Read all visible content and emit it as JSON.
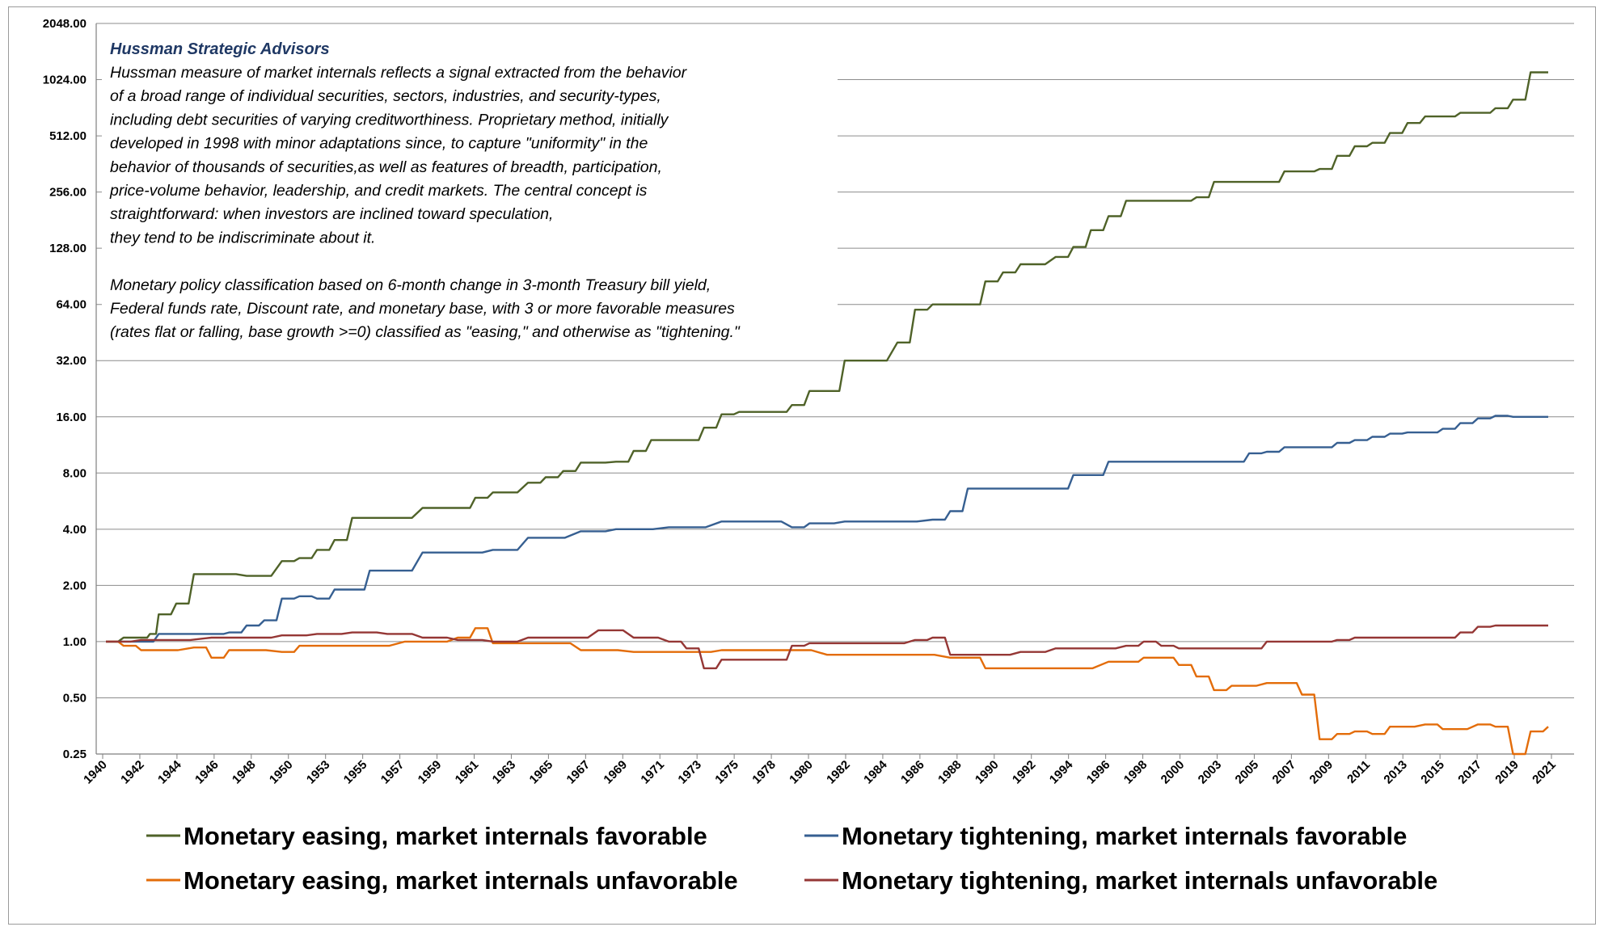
{
  "chart_data": {
    "type": "line",
    "y_scale": "log2",
    "ylim": [
      0.25,
      2048
    ],
    "xlim": [
      1940,
      2022
    ],
    "y_ticks": [
      "0.25",
      "0.50",
      "1.00",
      "2.00",
      "4.00",
      "8.00",
      "16.00",
      "32.00",
      "64.00",
      "128.00",
      "256.00",
      "512.00",
      "1024.00",
      "2048.00"
    ],
    "x_ticks": [
      "1940",
      "1942",
      "1944",
      "1946",
      "1948",
      "1950",
      "1953",
      "1955",
      "1957",
      "1959",
      "1961",
      "1963",
      "1965",
      "1967",
      "1969",
      "1971",
      "1973",
      "1975",
      "1978",
      "1980",
      "1982",
      "1984",
      "1986",
      "1988",
      "1990",
      "1992",
      "1994",
      "1996",
      "1998",
      "2000",
      "2003",
      "2005",
      "2007",
      "2009",
      "2011",
      "2013",
      "2015",
      "2017",
      "2019",
      "2021"
    ],
    "grid": "horizontal",
    "legend_position": "bottom",
    "annotation": {
      "title": "Hussman Strategic Advisors",
      "lines": [
        "Hussman measure of market internals reflects a signal extracted from the behavior",
        "of a broad range of individual securities, sectors, industries, and security-types,",
        "including debt securities of varying creditworthiness.  Proprietary method, initially",
        "developed in 1998 with minor adaptations since, to capture \"uniformity\" in the",
        "behavior of thousands of securities,as well as features of breadth, participation,",
        "price-volume behavior, leadership, and credit markets. The central concept is",
        "straightforward:  when investors are inclined toward speculation,",
        "they tend to be indiscriminate about it.",
        "",
        "Monetary policy classification based on 6-month change in 3-month Treasury bill yield,",
        "Federal funds rate, Discount rate, and monetary base, with 3 or more favorable measures",
        "(rates flat or falling, base growth >=0) classified as \"easing,\" and otherwise as \"tightening.\""
      ]
    },
    "series": [
      {
        "name": "Monetary easing, market internals favorable",
        "color": "#4f6228",
        "x": [
          1940,
          1941,
          1942,
          1942.5,
          1943,
          1944,
          1945,
          1946,
          1948,
          1950,
          1951,
          1952,
          1953,
          1954,
          1955,
          1956,
          1958,
          1960,
          1961,
          1962,
          1964,
          1965,
          1966,
          1967,
          1969,
          1970,
          1971,
          1973,
          1974,
          1975,
          1976,
          1978,
          1979,
          1980,
          1981,
          1982,
          1983,
          1985,
          1986,
          1987,
          1989,
          1990,
          1991,
          1992,
          1994,
          1995,
          1996,
          1997,
          1998,
          1999,
          2001,
          2002,
          2003,
          2005,
          2006,
          2007,
          2008,
          2009,
          2010,
          2011,
          2012,
          2013,
          2014,
          2015,
          2016,
          2017,
          2018,
          2019,
          2020,
          2021,
          2022
        ],
        "y": [
          1.0,
          1.05,
          1.05,
          1.1,
          1.4,
          1.6,
          2.3,
          2.3,
          2.25,
          2.7,
          2.8,
          3.1,
          3.5,
          4.6,
          4.6,
          4.6,
          5.2,
          5.2,
          5.9,
          6.3,
          7.1,
          7.6,
          8.2,
          9.1,
          9.2,
          10.5,
          12.0,
          12.0,
          14.0,
          16.5,
          17.0,
          17.0,
          18.5,
          22.0,
          22.0,
          32.0,
          32.0,
          40.0,
          60.0,
          64.0,
          64.0,
          85.0,
          95.0,
          105.0,
          115.0,
          130.0,
          160.0,
          190.0,
          230.0,
          230.0,
          230.0,
          240.0,
          290.0,
          290.0,
          290.0,
          330.0,
          330.0,
          340.0,
          400.0,
          450.0,
          470.0,
          530.0,
          600.0,
          650.0,
          650.0,
          680.0,
          680.0,
          720.0,
          800.0,
          1120.0,
          1120.0
        ]
      },
      {
        "name": "Monetary tightening, market internals favorable",
        "color": "#365f91",
        "x": [
          1940,
          1942,
          1943,
          1946,
          1947,
          1948,
          1949,
          1950,
          1951,
          1952,
          1953,
          1954,
          1955,
          1956,
          1958,
          1960,
          1962,
          1964,
          1967,
          1969,
          1972,
          1975,
          1977,
          1979,
          1980,
          1982,
          1984,
          1987,
          1988,
          1989,
          1990,
          1992,
          1994,
          1995,
          1996,
          1997,
          1999,
          2001,
          2002,
          2004,
          2005,
          2006,
          2007,
          2009,
          2010,
          2011,
          2012,
          2013,
          2014,
          2015,
          2016,
          2017,
          2018,
          2019,
          2020,
          2021,
          2022
        ],
        "y": [
          1.0,
          1.0,
          1.1,
          1.1,
          1.12,
          1.22,
          1.3,
          1.7,
          1.75,
          1.7,
          1.9,
          1.9,
          2.4,
          2.4,
          3.0,
          3.0,
          3.1,
          3.6,
          3.9,
          4.0,
          4.1,
          4.4,
          4.4,
          4.1,
          4.3,
          4.4,
          4.4,
          4.5,
          5.0,
          6.6,
          6.6,
          6.6,
          6.6,
          7.8,
          7.8,
          9.2,
          9.2,
          9.2,
          9.2,
          9.2,
          10.2,
          10.4,
          11.0,
          11.0,
          11.6,
          12.0,
          12.5,
          13.0,
          13.2,
          13.2,
          13.8,
          14.8,
          15.7,
          16.2,
          16.0,
          16.0,
          16.0
        ]
      },
      {
        "name": "Monetary easing, market internals unfavorable",
        "color": "#e36c09",
        "x": [
          1940,
          1941,
          1942,
          1945,
          1946,
          1947,
          1950,
          1951,
          1954,
          1957,
          1958,
          1960,
          1961,
          1962,
          1965,
          1967,
          1970,
          1973,
          1975,
          1978,
          1981,
          1983,
          1985,
          1988,
          1989,
          1990,
          1991,
          1994,
          1997,
          1998,
          1999,
          2000,
          2001,
          2002,
          2003,
          2004,
          2006,
          2007,
          2008,
          2009,
          2010,
          2011,
          2012,
          2013,
          2015,
          2016,
          2018,
          2019,
          2020,
          2021,
          2022
        ],
        "y": [
          1.0,
          0.95,
          0.9,
          0.93,
          0.82,
          0.9,
          0.88,
          0.95,
          0.95,
          1.0,
          1.0,
          1.05,
          1.18,
          0.98,
          0.98,
          0.9,
          0.88,
          0.88,
          0.9,
          0.9,
          0.85,
          0.85,
          0.85,
          0.82,
          0.82,
          0.72,
          0.72,
          0.72,
          0.78,
          0.78,
          0.82,
          0.82,
          0.75,
          0.65,
          0.55,
          0.58,
          0.6,
          0.6,
          0.52,
          0.3,
          0.32,
          0.33,
          0.32,
          0.35,
          0.36,
          0.34,
          0.36,
          0.35,
          0.25,
          0.33,
          0.35
        ]
      },
      {
        "name": "Monetary tightening, market internals unfavorable",
        "color": "#953735",
        "x": [
          1940,
          1942,
          1946,
          1948,
          1950,
          1952,
          1954,
          1956,
          1958,
          1960,
          1962,
          1964,
          1966,
          1968,
          1970,
          1972,
          1973,
          1974,
          1975,
          1978,
          1979,
          1980,
          1982,
          1984,
          1986,
          1987,
          1988,
          1990,
          1992,
          1994,
          1996,
          1998,
          1999,
          2000,
          2001,
          2003,
          2005,
          2006,
          2007,
          2009,
          2010,
          2011,
          2012,
          2013,
          2015,
          2016,
          2017,
          2018,
          2019,
          2020,
          2021,
          2022
        ],
        "y": [
          1.0,
          1.02,
          1.05,
          1.05,
          1.08,
          1.1,
          1.12,
          1.1,
          1.05,
          1.02,
          1.0,
          1.05,
          1.05,
          1.15,
          1.05,
          1.0,
          0.92,
          0.72,
          0.8,
          0.8,
          0.95,
          0.98,
          0.98,
          0.98,
          1.02,
          1.05,
          0.85,
          0.85,
          0.88,
          0.92,
          0.92,
          0.95,
          1.0,
          0.95,
          0.92,
          0.92,
          0.92,
          1.0,
          1.0,
          1.0,
          1.02,
          1.05,
          1.05,
          1.05,
          1.05,
          1.05,
          1.12,
          1.2,
          1.22,
          1.22,
          1.22,
          1.22
        ]
      }
    ]
  }
}
